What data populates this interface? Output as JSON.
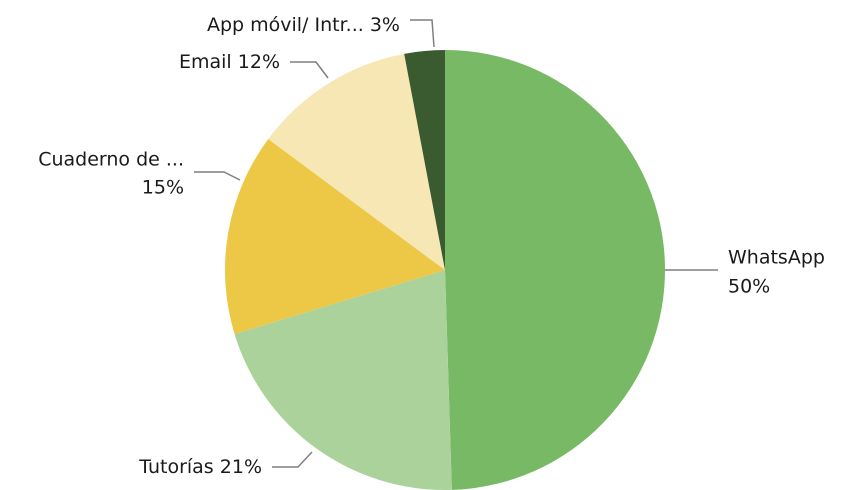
{
  "chart_data": {
    "type": "pie",
    "categories": [
      "WhatsApp",
      "Tutorías",
      "Cuaderno de ...",
      "Email",
      "App móvil/ Intr..."
    ],
    "values": [
      50,
      21,
      15,
      12,
      3
    ],
    "value_labels": [
      "50%",
      "21%",
      "15%",
      "12%",
      "3%"
    ],
    "colors": [
      "#77b964",
      "#acd29c",
      "#ecc846",
      "#f6e7b5",
      "#3a5a30"
    ]
  }
}
